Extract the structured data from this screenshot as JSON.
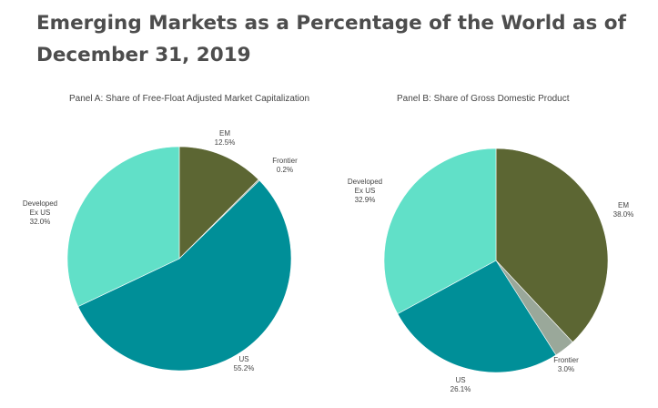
{
  "title": "Emerging Markets as a Percentage of the World as of December 31, 2019",
  "colors": {
    "em": "#5c6633",
    "frontier": "#9aa89a",
    "us": "#008f98",
    "developed_ex_us": "#61e0c8"
  },
  "chart_data": [
    {
      "type": "pie",
      "title": "Panel A: Share of Free-Float Adjusted Market Capitalization",
      "slices": [
        {
          "label": [
            "EM"
          ],
          "value": 12.5,
          "display": "12.5%",
          "color": "#5c6633"
        },
        {
          "label": [
            "Frontier"
          ],
          "value": 0.2,
          "display": "0.2%",
          "color": "#9aa89a"
        },
        {
          "label": [
            "US"
          ],
          "value": 55.2,
          "display": "55.2%",
          "color": "#008f98"
        },
        {
          "label": [
            "Developed",
            "Ex US"
          ],
          "value": 32.0,
          "display": "32.0%",
          "color": "#61e0c8"
        }
      ]
    },
    {
      "type": "pie",
      "title": "Panel B: Share of Gross Domestic Product",
      "slices": [
        {
          "label": [
            "EM"
          ],
          "value": 38.0,
          "display": "38.0%",
          "color": "#5c6633"
        },
        {
          "label": [
            "Frontier"
          ],
          "value": 3.0,
          "display": "3.0%",
          "color": "#9aa89a"
        },
        {
          "label": [
            "US"
          ],
          "value": 26.1,
          "display": "26.1%",
          "color": "#008f98"
        },
        {
          "label": [
            "Developed",
            "Ex US"
          ],
          "value": 32.9,
          "display": "32.9%",
          "color": "#61e0c8"
        }
      ]
    }
  ]
}
